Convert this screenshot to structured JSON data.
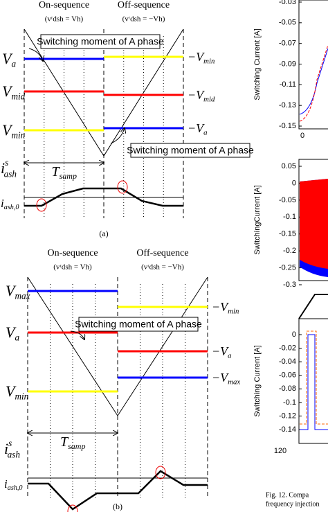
{
  "panel_a": {
    "on_sequence": "On-sequence",
    "off_sequence": "Off-sequence",
    "on_condition": "(vʳdsh = Vh)",
    "off_condition": "(vʳdsh = −Vh)",
    "left_labels": [
      {
        "v": "V",
        "s": "a"
      },
      {
        "v": "V",
        "s": "mid"
      },
      {
        "v": "V",
        "s": "min"
      }
    ],
    "right_labels": [
      {
        "v": "−V",
        "s": "min"
      },
      {
        "v": "−V",
        "s": "mid"
      },
      {
        "v": "−V",
        "s": "a"
      }
    ],
    "callouts": [
      "Switching moment of A phase",
      "Switching moment of A phase"
    ],
    "period": {
      "v": "T",
      "s": "samp"
    },
    "current": {
      "v": "i",
      "sup": "s",
      "s": "ash"
    },
    "current_zero": {
      "v": "i",
      "s": "ash,0"
    },
    "caption": "(a)"
  },
  "panel_b": {
    "on_sequence": "On-sequence",
    "off_sequence": "Off-sequence",
    "on_condition": "(vʳdsh = Vh)",
    "off_condition": "(vʳdsh = −Vh)",
    "left_labels": [
      {
        "v": "V",
        "s": "max"
      },
      {
        "v": "V",
        "s": "a"
      },
      {
        "v": "V",
        "s": "min"
      }
    ],
    "right_labels": [
      {
        "v": "−V",
        "s": "min"
      },
      {
        "v": "−V",
        "s": "a"
      },
      {
        "v": "−V",
        "s": "max"
      }
    ],
    "callouts": [
      "Switching moment of A phase"
    ],
    "period": {
      "v": "T",
      "s": "samp"
    },
    "current": {
      "v": "i",
      "sup": "s",
      "s": "ash"
    },
    "current_zero": {
      "v": "i",
      "s": "ash,0"
    },
    "caption": "(b)"
  },
  "right_charts": [
    {
      "y_label": "Switching Current [A]",
      "yticks": [
        "-0.03",
        "-0.05",
        "-0.07",
        "-0.09",
        "-0.11",
        "-0.13",
        "-0.15"
      ],
      "xticks": [
        "0"
      ]
    },
    {
      "y_label": "SwitchingCurrent [A]",
      "yticks": [
        "0.05",
        "0",
        "-0.05",
        "-0.1",
        "-0.15",
        "-0.2",
        "-0.25",
        "-0.3"
      ]
    },
    {
      "y_label": "Switching Current [A]",
      "yticks": [
        "0",
        "-0.02",
        "-0.04",
        "-0.06",
        "-0.08",
        "-0.1",
        "-0.12",
        "-0.14"
      ],
      "xticks": [
        "120"
      ]
    }
  ],
  "caption": [
    "Fig. 12. Compa",
    "frequency injection"
  ]
}
